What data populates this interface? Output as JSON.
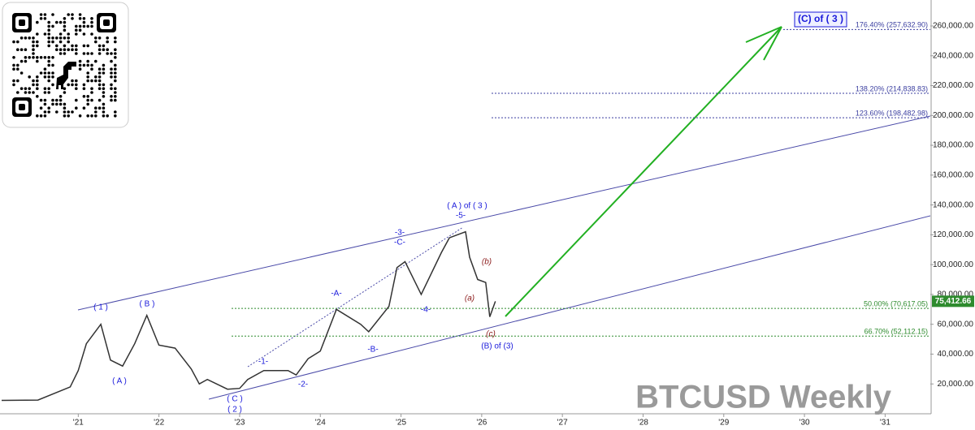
{
  "chart_data": {
    "type": "line",
    "title": "BTCUSD Weekly",
    "series": [
      {
        "color": "#333333",
        "x": [
          2020.05,
          2020.5,
          2020.9,
          2021.0,
          2021.1,
          2021.28,
          2021.4,
          2021.55,
          2021.7,
          2021.85,
          2022.0,
          2022.2,
          2022.4,
          2022.5,
          2022.6,
          2022.85,
          2023.0,
          2023.1,
          2023.3,
          2023.6,
          2023.7,
          2023.85,
          2024.0,
          2024.2,
          2024.5,
          2024.6,
          2024.85,
          2024.95,
          2025.05,
          2025.25,
          2025.5,
          2025.6,
          2025.8,
          2025.85,
          2025.95,
          2026.05,
          2026.1,
          2026.17
        ],
        "values": [
          9000,
          9200,
          18000,
          29000,
          47000,
          60000,
          36000,
          32000,
          47000,
          66000,
          46000,
          44000,
          30000,
          20000,
          23000,
          16500,
          17000,
          23000,
          29000,
          29000,
          26000,
          37000,
          42000,
          70000,
          60000,
          55000,
          72000,
          98000,
          102000,
          80000,
          108000,
          118000,
          122000,
          105000,
          90000,
          88000,
          65000,
          75412.66
        ]
      }
    ],
    "last_value_label": "75,412.66",
    "xlim": [
      2020.03,
      2031.56
    ],
    "xticks": [
      {
        "value": 2021,
        "label": "'21"
      },
      {
        "value": 2022,
        "label": "'22"
      },
      {
        "value": 2023,
        "label": "'23"
      },
      {
        "value": 2024,
        "label": "'24"
      },
      {
        "value": 2025,
        "label": "'25"
      },
      {
        "value": 2026,
        "label": "'26"
      },
      {
        "value": 2027,
        "label": "'27"
      },
      {
        "value": 2028,
        "label": "'28"
      },
      {
        "value": 2029,
        "label": "'29"
      },
      {
        "value": 2030,
        "label": "'30"
      },
      {
        "value": 2031,
        "label": "'31"
      }
    ],
    "ylim": [
      0,
      277400
    ],
    "yticks": [
      {
        "value": 20000,
        "label": "20,000.00"
      },
      {
        "value": 40000,
        "label": "40,000.00"
      },
      {
        "value": 60000,
        "label": "60,000.00"
      },
      {
        "value": 80000,
        "label": "80,000.00"
      },
      {
        "value": 100000,
        "label": "100,000.00"
      },
      {
        "value": 120000,
        "label": "120,000.00"
      },
      {
        "value": 140000,
        "label": "140,000.00"
      },
      {
        "value": 160000,
        "label": "160,000.00"
      },
      {
        "value": 180000,
        "label": "180,000.00"
      },
      {
        "value": 200000,
        "label": "200,000.00"
      },
      {
        "value": 220000,
        "label": "220,000.00"
      },
      {
        "value": 240000,
        "label": "240,000.00"
      },
      {
        "value": 260000,
        "label": "260,000.00"
      }
    ],
    "levels": [
      {
        "value": 257632.9,
        "label": "176.40% (257,632.90)",
        "color": "#3b3fa0"
      },
      {
        "value": 214838.83,
        "label": "138.20% (214,838.83)",
        "color": "#3b3fa0"
      },
      {
        "value": 198482.98,
        "label": "123.60% (198,482.98)",
        "color": "#3b3fa0"
      },
      {
        "value": 70617.05,
        "label": "50.00% (70,617.05)",
        "color": "#2e8b2e"
      },
      {
        "value": 52112.15,
        "label": "66.70% (52,112.15)",
        "color": "#2e8b2e"
      }
    ],
    "annotations": [
      "( 1 )",
      "( B )",
      "( A )",
      "( C )",
      "( 2 )",
      "-1-",
      "-2-",
      "-A-",
      "-B-",
      "-3-",
      "-C-",
      "-4-",
      "( A ) of ( 3 )",
      "-5-",
      "(a)",
      "(b)",
      "(c)",
      "(B) of (3)",
      "(C) of ( 3 )"
    ]
  }
}
